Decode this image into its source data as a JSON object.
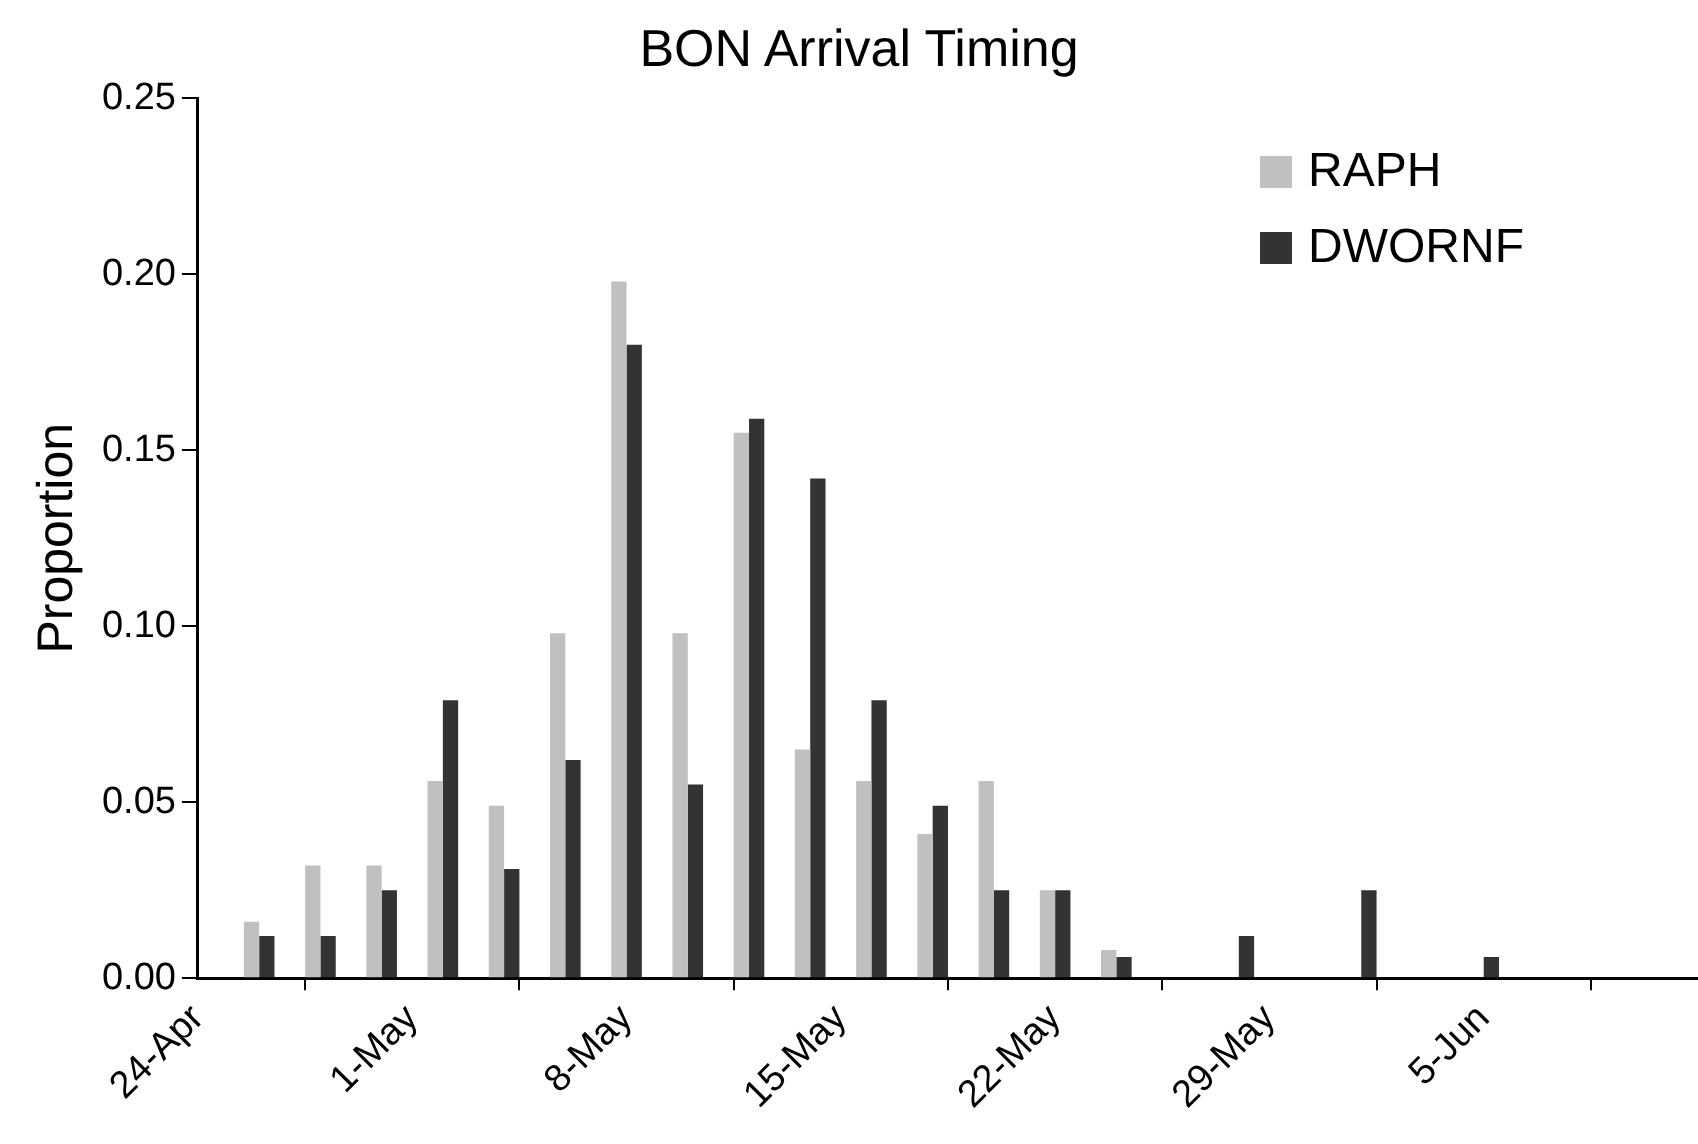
{
  "chart_data": {
    "type": "bar",
    "title": "BON Arrival Timing",
    "ylabel": "Proportion",
    "x": [
      "--04-26",
      "--04-28",
      "--04-30",
      "--05-02",
      "--05-04",
      "--05-06",
      "--05-08",
      "--05-10",
      "--05-12",
      "--05-14",
      "--05-16",
      "--05-18",
      "--05-20",
      "--05-22",
      "--05-24",
      "--05-26",
      "--05-28",
      "--05-30",
      "--06-01",
      "--06-03",
      "--06-05"
    ],
    "series": [
      {
        "name": "RAPH",
        "color": "#c0c0c0",
        "values": [
          0.016,
          0.032,
          0.032,
          0.056,
          0.049,
          0.098,
          0.198,
          0.098,
          0.155,
          0.065,
          0.056,
          0.041,
          0.056,
          0.025,
          0.008,
          null,
          null,
          null,
          null,
          null,
          null
        ]
      },
      {
        "name": "DWORNF",
        "color": "#333333",
        "values": [
          0.012,
          0.012,
          0.025,
          0.079,
          0.031,
          0.062,
          0.18,
          0.055,
          0.159,
          0.142,
          0.079,
          0.049,
          0.025,
          0.025,
          0.006,
          null,
          0.012,
          null,
          0.025,
          null,
          0.006
        ]
      }
    ],
    "xlim": [
      "--04-24",
      "--06-12"
    ],
    "xticks": [
      {
        "value": "--04-24",
        "label": "24-Apr"
      },
      {
        "value": "--05-01",
        "label": "1-May"
      },
      {
        "value": "--05-08",
        "label": "8-May"
      },
      {
        "value": "--05-15",
        "label": "15-May"
      },
      {
        "value": "--05-22",
        "label": "22-May"
      },
      {
        "value": "--05-29",
        "label": "29-May"
      },
      {
        "value": "--06-05",
        "label": "5-Jun"
      }
    ],
    "ylim": [
      0,
      0.25
    ],
    "yticks": [
      {
        "value": 0,
        "label": "0.00"
      },
      {
        "value": 0.05,
        "label": "0.05"
      },
      {
        "value": 0.1,
        "label": "0.10"
      },
      {
        "value": 0.15,
        "label": "0.15"
      },
      {
        "value": 0.2,
        "label": "0.20"
      },
      {
        "value": 0.25,
        "label": "0.25"
      }
    ],
    "grid": false,
    "legend": "top right"
  }
}
